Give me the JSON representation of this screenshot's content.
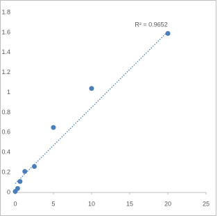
{
  "chart_data": {
    "type": "scatter",
    "x": [
      0,
      0.312,
      0.625,
      1.25,
      2.5,
      5,
      10,
      20
    ],
    "values": [
      0.01,
      0.04,
      0.11,
      0.21,
      0.26,
      0.65,
      1.04,
      1.59
    ],
    "color": "#4a7ebb",
    "xlim": [
      0,
      25
    ],
    "xticks": [
      0,
      5,
      10,
      15,
      20,
      25
    ],
    "ylim": [
      0,
      1.8
    ],
    "yticks": [
      0,
      0.2,
      0.4,
      0.6,
      0.8,
      1,
      1.2,
      1.4,
      1.6,
      1.8
    ],
    "grid": false,
    "trendline": {
      "x": [
        0,
        20
      ],
      "y": [
        0.09,
        1.61
      ],
      "color": "#4a7ebb"
    },
    "annotation": "R² = 0.9652"
  }
}
